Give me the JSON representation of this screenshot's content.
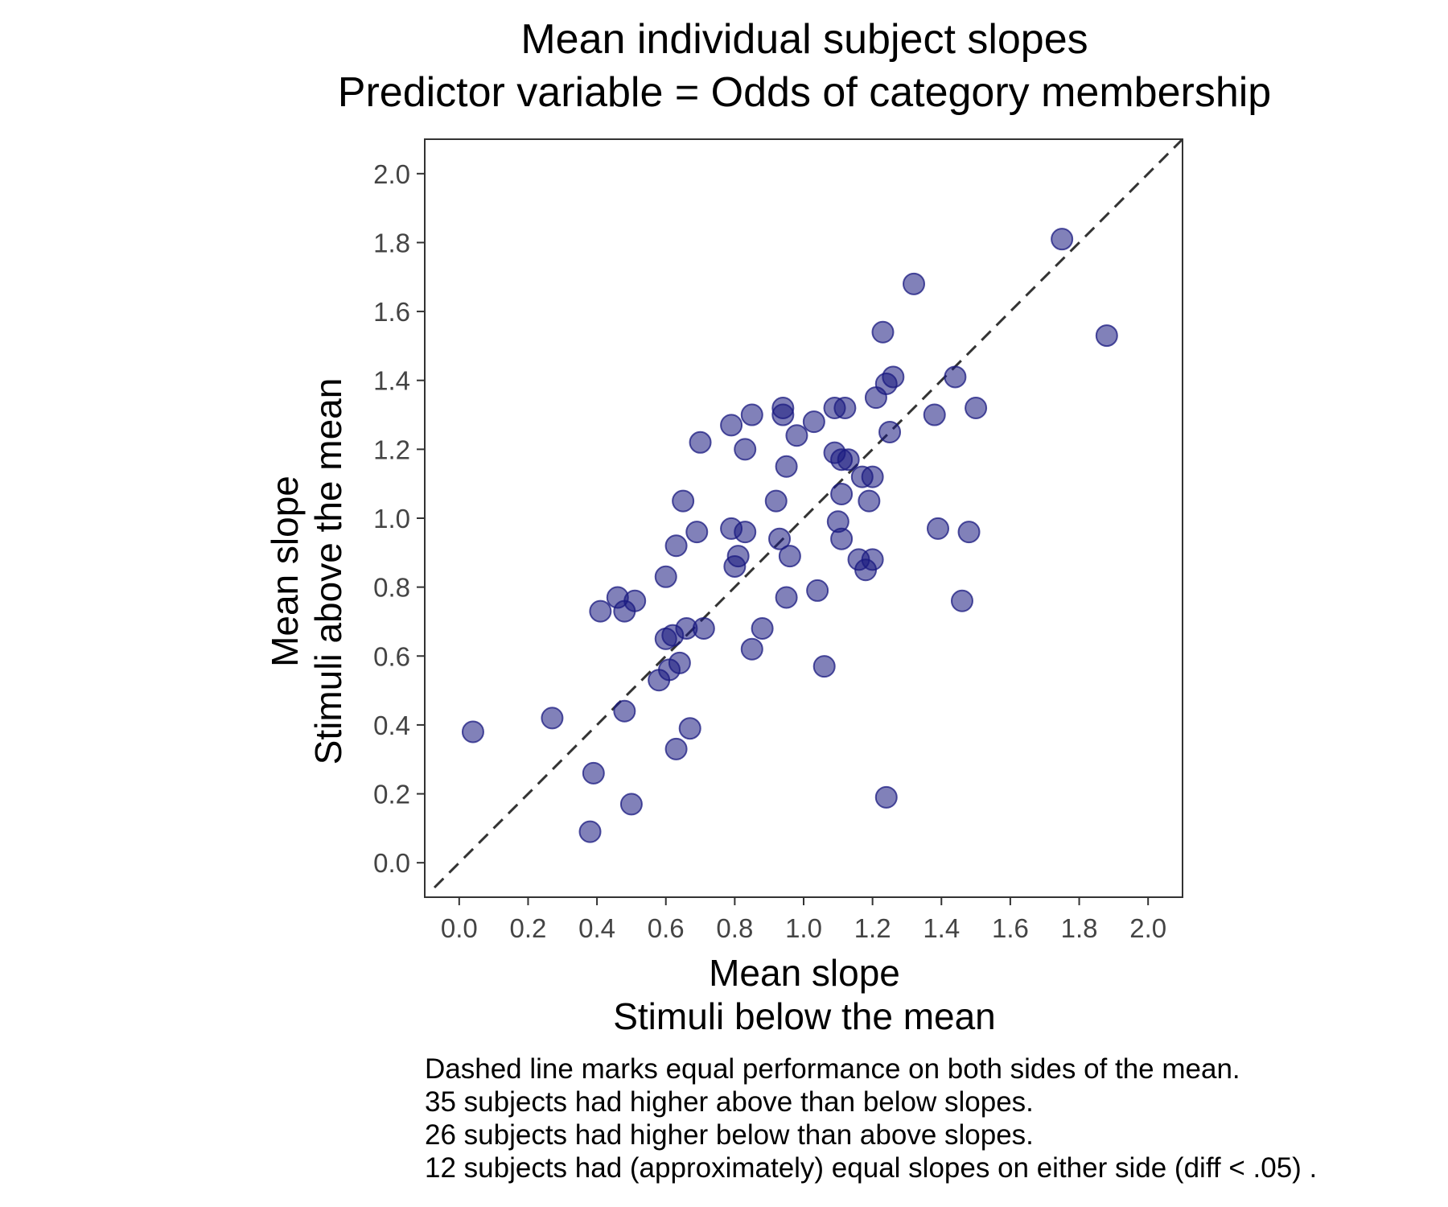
{
  "chart_data": {
    "type": "scatter",
    "title": [
      "Mean individual subject slopes",
      "Predictor variable = Odds of category membership"
    ],
    "xlabel": [
      "Mean slope",
      "Stimuli below the mean"
    ],
    "ylabel": [
      "Mean slope",
      "Stimuli above the mean"
    ],
    "xlim": [
      -0.1,
      2.1
    ],
    "ylim": [
      -0.1,
      2.1
    ],
    "xticks": [
      "0.0",
      "0.2",
      "0.4",
      "0.6",
      "0.8",
      "1.0",
      "1.2",
      "1.4",
      "1.6",
      "1.8",
      "2.0"
    ],
    "yticks": [
      "0.0",
      "0.2",
      "0.4",
      "0.6",
      "0.8",
      "1.0",
      "1.2",
      "1.4",
      "1.6",
      "1.8",
      "2.0"
    ],
    "grid": false,
    "reference_line": {
      "type": "identity",
      "style": "dashed",
      "color": "#333333"
    },
    "point_color": "#1a1a80",
    "point_opacity": 0.55,
    "points": [
      {
        "x": 0.04,
        "y": 0.38
      },
      {
        "x": 0.27,
        "y": 0.42
      },
      {
        "x": 0.38,
        "y": 0.09
      },
      {
        "x": 0.39,
        "y": 0.26
      },
      {
        "x": 0.41,
        "y": 0.73
      },
      {
        "x": 0.46,
        "y": 0.77
      },
      {
        "x": 0.48,
        "y": 0.73
      },
      {
        "x": 0.48,
        "y": 0.44
      },
      {
        "x": 0.5,
        "y": 0.17
      },
      {
        "x": 0.51,
        "y": 0.76
      },
      {
        "x": 0.58,
        "y": 0.53
      },
      {
        "x": 0.6,
        "y": 0.83
      },
      {
        "x": 0.6,
        "y": 0.65
      },
      {
        "x": 0.61,
        "y": 0.56
      },
      {
        "x": 0.62,
        "y": 0.66
      },
      {
        "x": 0.63,
        "y": 0.33
      },
      {
        "x": 0.63,
        "y": 0.92
      },
      {
        "x": 0.64,
        "y": 0.58
      },
      {
        "x": 0.65,
        "y": 1.05
      },
      {
        "x": 0.66,
        "y": 0.68
      },
      {
        "x": 0.67,
        "y": 0.39
      },
      {
        "x": 0.69,
        "y": 0.96
      },
      {
        "x": 0.7,
        "y": 1.22
      },
      {
        "x": 0.71,
        "y": 0.68
      },
      {
        "x": 0.79,
        "y": 0.97
      },
      {
        "x": 0.79,
        "y": 1.27
      },
      {
        "x": 0.8,
        "y": 0.86
      },
      {
        "x": 0.81,
        "y": 0.89
      },
      {
        "x": 0.83,
        "y": 0.96
      },
      {
        "x": 0.83,
        "y": 1.2
      },
      {
        "x": 0.85,
        "y": 1.3
      },
      {
        "x": 0.85,
        "y": 0.62
      },
      {
        "x": 0.88,
        "y": 0.68
      },
      {
        "x": 0.92,
        "y": 1.05
      },
      {
        "x": 0.93,
        "y": 0.94
      },
      {
        "x": 0.94,
        "y": 1.3
      },
      {
        "x": 0.94,
        "y": 1.32
      },
      {
        "x": 0.95,
        "y": 0.77
      },
      {
        "x": 0.95,
        "y": 1.15
      },
      {
        "x": 0.96,
        "y": 0.89
      },
      {
        "x": 0.98,
        "y": 1.24
      },
      {
        "x": 1.03,
        "y": 1.28
      },
      {
        "x": 1.04,
        "y": 0.79
      },
      {
        "x": 1.06,
        "y": 0.57
      },
      {
        "x": 1.09,
        "y": 1.32
      },
      {
        "x": 1.09,
        "y": 1.19
      },
      {
        "x": 1.1,
        "y": 0.99
      },
      {
        "x": 1.11,
        "y": 1.17
      },
      {
        "x": 1.11,
        "y": 1.07
      },
      {
        "x": 1.11,
        "y": 0.94
      },
      {
        "x": 1.12,
        "y": 1.32
      },
      {
        "x": 1.13,
        "y": 1.17
      },
      {
        "x": 1.16,
        "y": 0.88
      },
      {
        "x": 1.17,
        "y": 1.12
      },
      {
        "x": 1.18,
        "y": 0.85
      },
      {
        "x": 1.19,
        "y": 1.05
      },
      {
        "x": 1.2,
        "y": 1.12
      },
      {
        "x": 1.2,
        "y": 0.88
      },
      {
        "x": 1.21,
        "y": 1.35
      },
      {
        "x": 1.23,
        "y": 1.54
      },
      {
        "x": 1.24,
        "y": 1.39
      },
      {
        "x": 1.24,
        "y": 0.19
      },
      {
        "x": 1.25,
        "y": 1.25
      },
      {
        "x": 1.26,
        "y": 1.41
      },
      {
        "x": 1.32,
        "y": 1.68
      },
      {
        "x": 1.38,
        "y": 1.3
      },
      {
        "x": 1.39,
        "y": 0.97
      },
      {
        "x": 1.44,
        "y": 1.41
      },
      {
        "x": 1.46,
        "y": 0.76
      },
      {
        "x": 1.48,
        "y": 0.96
      },
      {
        "x": 1.5,
        "y": 1.32
      },
      {
        "x": 1.75,
        "y": 1.81
      },
      {
        "x": 1.88,
        "y": 1.53
      }
    ],
    "caption": [
      "Dashed line marks equal performance on both sides of the mean.",
      "35 subjects had higher above than below slopes.",
      "26 subjects had higher below than above slopes.",
      "12 subjects had (approximately) equal slopes on either side (diff < .05) ."
    ]
  }
}
